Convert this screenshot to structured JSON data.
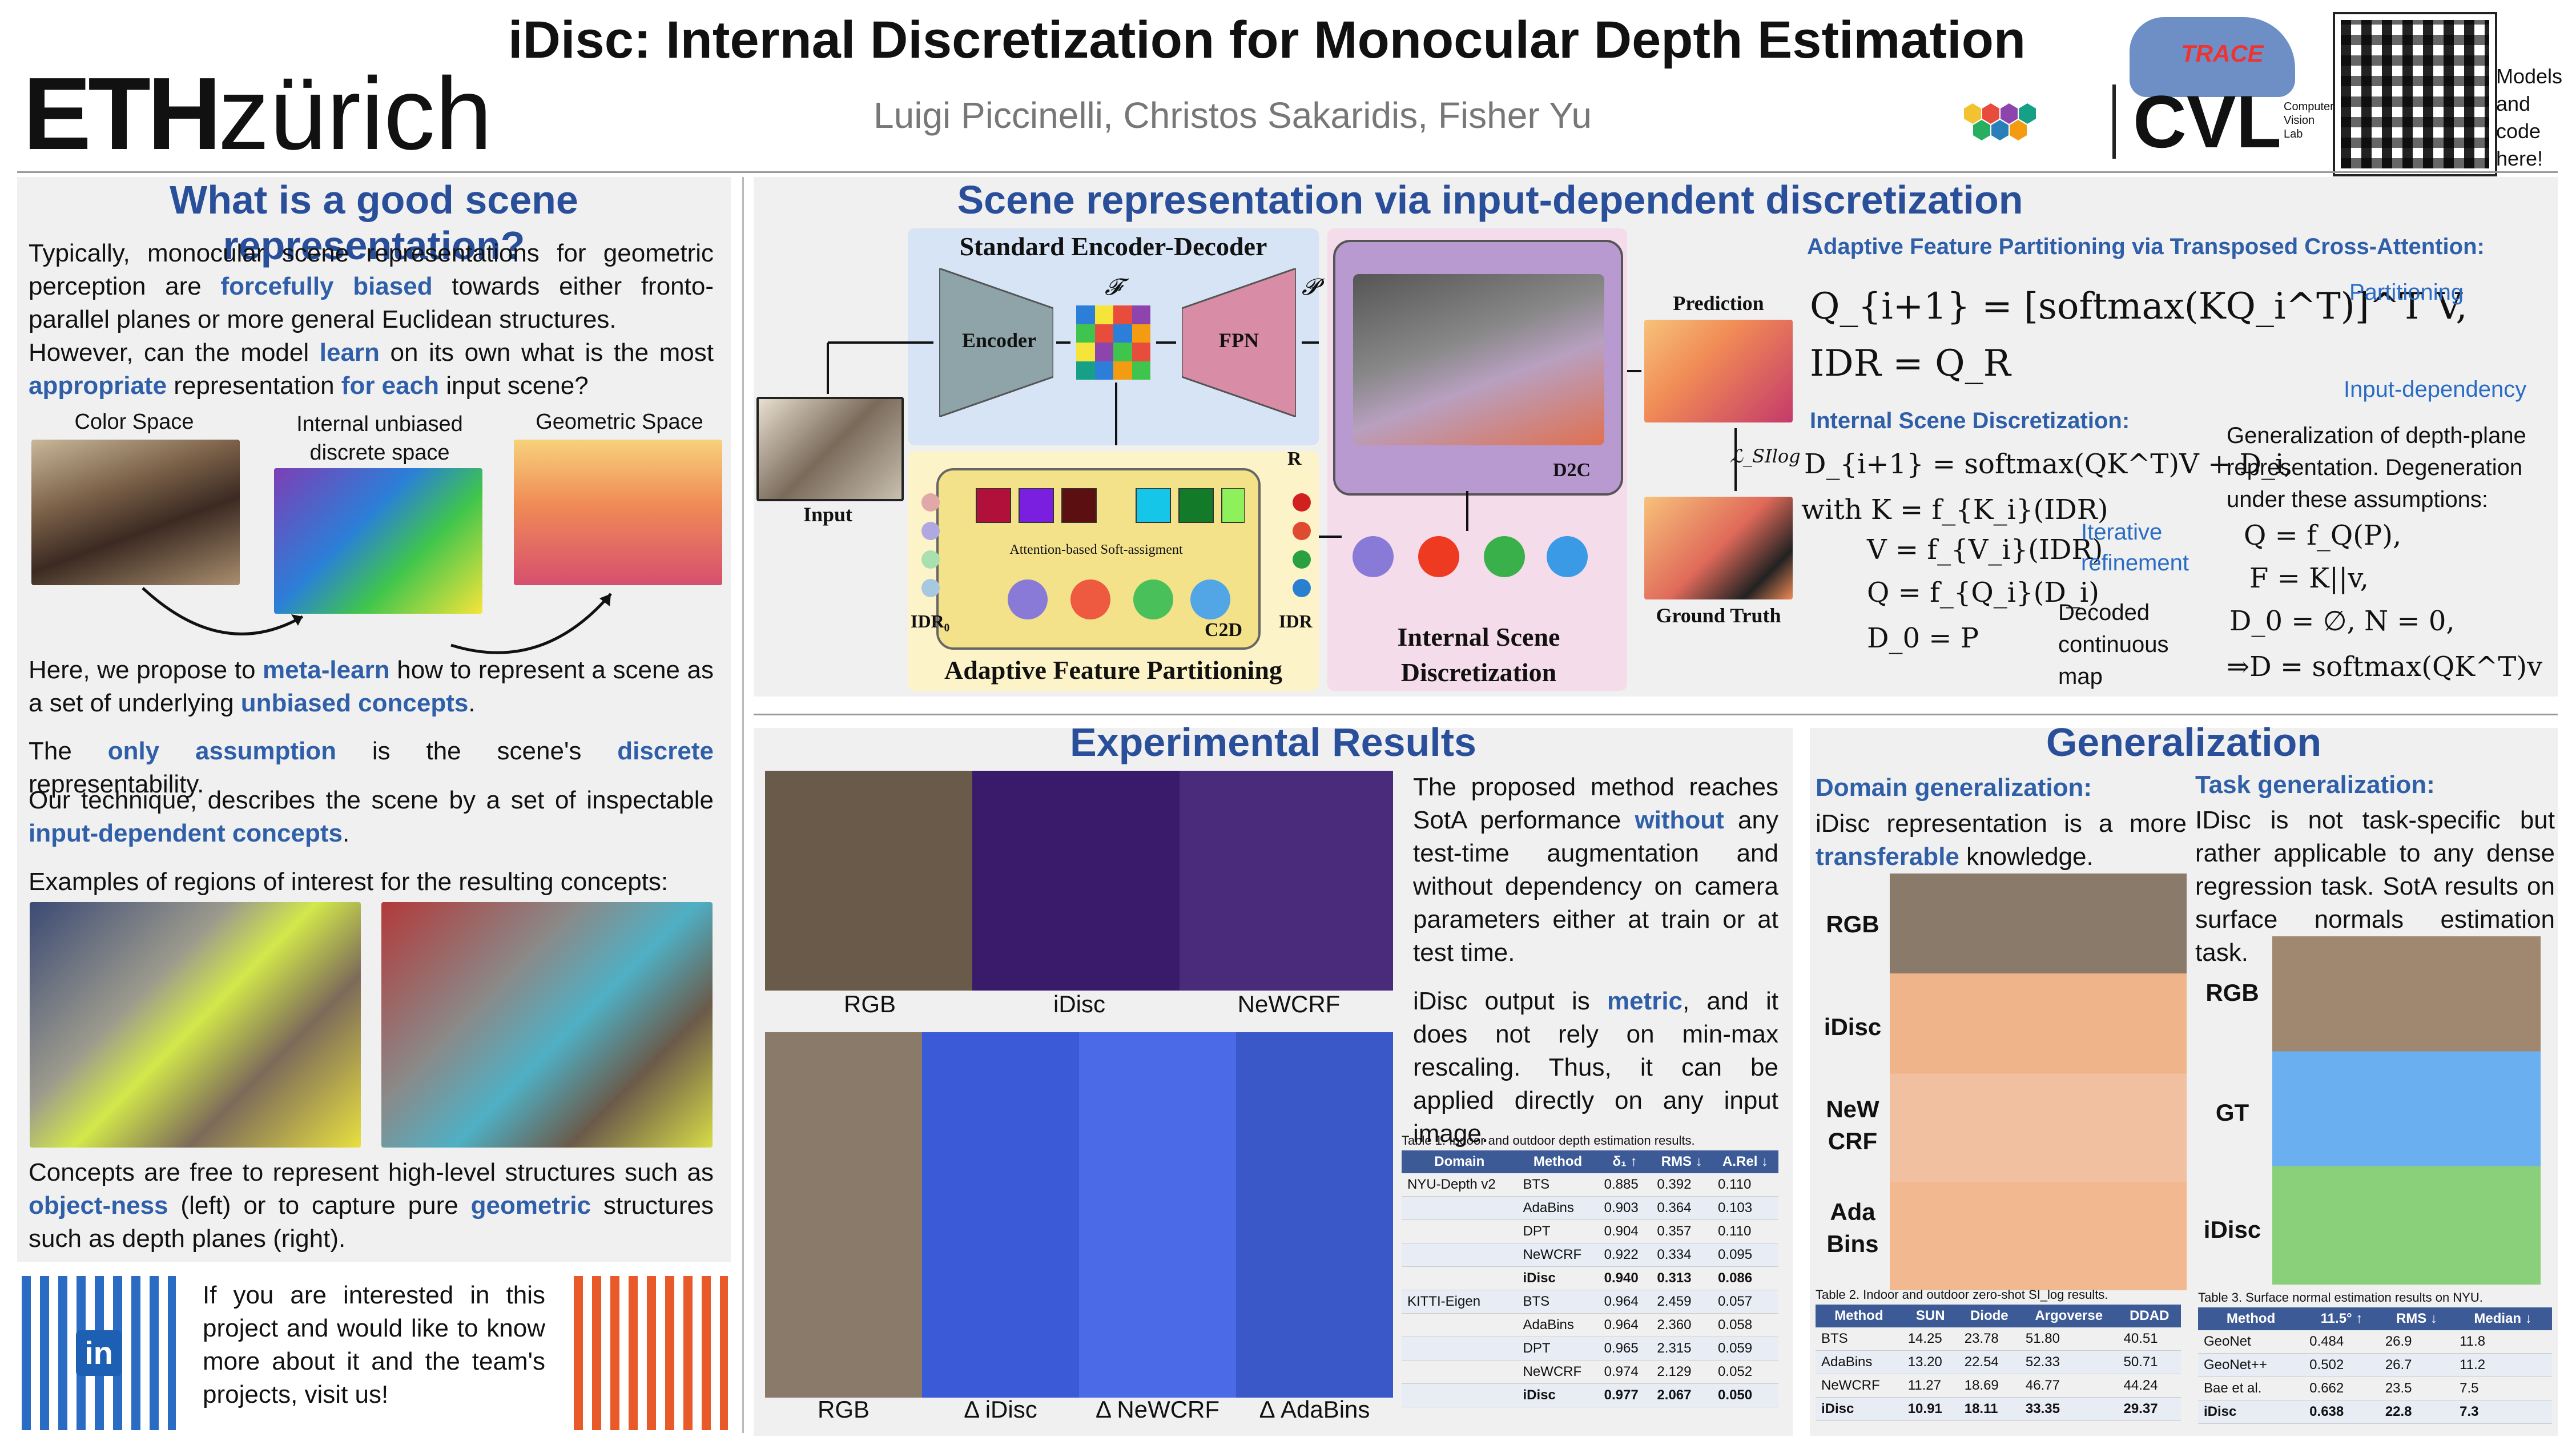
{
  "header": {
    "title": "iDisc: Internal Discretization for Monocular Depth Estimation",
    "authors": "Luigi Piccinelli, Christos Sakaridis, Fisher Yu",
    "eth_logo": {
      "eth": "ETH",
      "zurich": "zürich"
    },
    "cvl_logo": {
      "text": "CVL",
      "sub": "Computer Vision Lab"
    },
    "trace_logo": "TRACE",
    "models_note": "Models and code here!"
  },
  "left": {
    "section_title": "What is a good scene representation?",
    "para1_a": "Typically, monocular scene representations for geometric perception are ",
    "para1_hl": "forcefully biased",
    "para1_b": " towards either fronto-parallel planes or more general Euclidean structures.",
    "para2_a": "However, can the model ",
    "para2_hl1": "learn",
    "para2_b": " on its own what is the most ",
    "para2_hl2": "appropriate",
    "para2_c": " representation ",
    "para2_hl3": "for each",
    "para2_d": " input scene?",
    "label_color": "Color Space",
    "label_discrete": "Internal unbiased discrete space",
    "label_geometric": "Geometric Space",
    "para3_a": "Here, we propose to ",
    "para3_hl1": "meta-learn",
    "para3_b": " how to represent a scene as a set of underlying ",
    "para3_hl2": "unbiased concepts",
    "para3_c": ".",
    "para4_a": "The ",
    "para4_hl1": "only assumption",
    "para4_b": " is the scene's ",
    "para4_hl2": "discrete",
    "para4_c": " representability.",
    "para5_a": "Our technique, describes the scene by a set of inspectable ",
    "para5_hl": "input-dependent concepts",
    "para5_b": ".",
    "para6": "Examples of regions of interest for the resulting concepts:",
    "para7_a": "Concepts are free to represent high-level structures such as ",
    "para7_hl1": "object-ness",
    "para7_b": " (left) or to capture pure ",
    "para7_hl2": "geometric",
    "para7_c": " structures such as depth planes (right).",
    "contact": "If you are interested in this project and would like to know more about it and the team's projects, visit us!",
    "linkedin": "in"
  },
  "method": {
    "section_title": "Scene representation via input-dependent discretization",
    "encdec_title": "Standard Encoder-Decoder",
    "encoder": "Encoder",
    "fpn": "FPN",
    "f_sym": "𝓕",
    "p_sym": "𝓟",
    "input": "Input",
    "idr0": "IDR₀",
    "idr": "IDR",
    "r_sym": "R",
    "attn_label": "Attention-based Soft-assigment",
    "c2d": "C2D",
    "afp_title": "Adaptive Feature Partitioning",
    "isd_title": "Internal Scene Discretization",
    "d2c": "D2C",
    "prediction": "Prediction",
    "ground_truth": "Ground Truth",
    "loss": "ℒ_SIlog",
    "afp_heading": "Adaptive Feature Partitioning via Transposed Cross-Attention:",
    "eq1": "Q_{i+1} = [softmax(KQ_i^T)]^T V,",
    "eq2": "IDR = Q_R",
    "partitioning": "Partitioning",
    "input_dependency": "Input-dependency",
    "isd_heading": "Internal Scene Discretization:",
    "eq3": "D_{i+1} = softmax(QK^T)V + D_i,",
    "eq4": "with K = f_{K_i}(IDR)",
    "eq5": "V = f_{V_i}(IDR)",
    "eq6": "Q = f_{Q_i}(D_i)",
    "eq7": "D_0 = P",
    "iterative": "Iterative refinement",
    "decoded": "Decoded continuous map",
    "gen_text": "Generalization of depth-plane representation. Degeneration under these assumptions:",
    "eq8": "Q = f_Q(P),",
    "eq9": "F = K||v,",
    "eq10": "D_0 = ∅, N = 0,",
    "eq11": "⇒D = softmax(QK^T)v"
  },
  "experiments": {
    "section_title": "Experimental Results",
    "col_rgb": "RGB",
    "col_idisc": "iDisc",
    "col_newcrf": "NeWCRF",
    "col_rgb2": "RGB",
    "col_d_idisc": "Δ iDisc",
    "col_d_newcrf": "Δ NeWCRF",
    "col_d_adabins": "Δ AdaBins",
    "text1_a": "The proposed method reaches SotA performance ",
    "text1_hl": "without",
    "text1_b": " any test-time augmentation and without dependency on camera parameters either at train or at test time.",
    "text2_a": "iDisc output is ",
    "text2_hl": "metric",
    "text2_b": ", and it does not rely on min-max rescaling. Thus, it can be applied directly on any input image.",
    "table1_caption": "Table 1. Indoor and outdoor depth estimation results.",
    "table1_headers": [
      "Domain",
      "Method",
      "δ₁ ↑",
      "RMS ↓",
      "A.Rel ↓"
    ],
    "table1_rows": [
      [
        "NYU-Depth v2",
        "BTS",
        "0.885",
        "0.392",
        "0.110"
      ],
      [
        "",
        "AdaBins",
        "0.903",
        "0.364",
        "0.103"
      ],
      [
        "",
        "DPT",
        "0.904",
        "0.357",
        "0.110"
      ],
      [
        "",
        "NeWCRF",
        "0.922",
        "0.334",
        "0.095"
      ],
      [
        "",
        "iDisc",
        "0.940",
        "0.313",
        "0.086"
      ],
      [
        "KITTI-Eigen",
        "BTS",
        "0.964",
        "2.459",
        "0.057"
      ],
      [
        "",
        "AdaBins",
        "0.964",
        "2.360",
        "0.058"
      ],
      [
        "",
        "DPT",
        "0.965",
        "2.315",
        "0.059"
      ],
      [
        "",
        "NeWCRF",
        "0.974",
        "2.129",
        "0.052"
      ],
      [
        "",
        "iDisc",
        "0.977",
        "2.067",
        "0.050"
      ]
    ]
  },
  "generalization": {
    "section_title": "Generalization",
    "domain_heading": "Domain generalization:",
    "domain_text_a": "iDisc representation is a more ",
    "domain_text_hl": "transferable",
    "domain_text_b": " knowledge.",
    "row_rgb": "RGB",
    "row_idisc": "iDisc",
    "row_newcrf": "NeW CRF",
    "row_adabins": "Ada Bins",
    "task_heading": "Task generalization:",
    "task_text": "IDisc is not task-specific but rather applicable to any dense regression task. SotA results on surface normals estimation task.",
    "row_rgb2": "RGB",
    "row_gt": "GT",
    "row_idisc2": "iDisc",
    "table2_caption": "Table 2. Indoor and outdoor zero-shot SI_log results.",
    "table2_headers": [
      "Method",
      "SUN",
      "Diode",
      "Argoverse",
      "DDAD"
    ],
    "table2_rows": [
      [
        "BTS",
        "14.25",
        "23.78",
        "51.80",
        "40.51"
      ],
      [
        "AdaBins",
        "13.20",
        "22.54",
        "52.33",
        "50.71"
      ],
      [
        "NeWCRF",
        "11.27",
        "18.69",
        "46.77",
        "44.24"
      ],
      [
        "iDisc",
        "10.91",
        "18.11",
        "33.35",
        "29.37"
      ]
    ],
    "table3_caption": "Table 3. Surface normal estimation results on NYU.",
    "table3_headers": [
      "Method",
      "11.5° ↑",
      "RMS ↓",
      "Median ↓"
    ],
    "table3_rows": [
      [
        "GeoNet",
        "0.484",
        "26.9",
        "11.8"
      ],
      [
        "GeoNet++",
        "0.502",
        "26.7",
        "11.2"
      ],
      [
        "Bae et al.",
        "0.662",
        "23.5",
        "7.5"
      ],
      [
        "iDisc",
        "0.638",
        "22.8",
        "7.3"
      ]
    ]
  }
}
